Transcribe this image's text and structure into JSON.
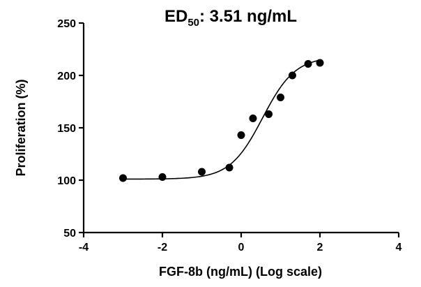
{
  "chart_data": {
    "type": "scatter",
    "title": {
      "main": "ED",
      "sub": "50",
      "rest": ": 3.51 ng/mL"
    },
    "xlabel": "FGF-8b (ng/mL) (Log scale)",
    "ylabel": "Proliferation (%)",
    "xlim": [
      -4,
      4
    ],
    "ylim": [
      50,
      250
    ],
    "xticks": [
      -4,
      -2,
      0,
      2,
      4
    ],
    "yticks": [
      50,
      100,
      150,
      200,
      250
    ],
    "xtick_labels": [
      "-4",
      "-2",
      "0",
      "2",
      "4"
    ],
    "ytick_labels": [
      "50",
      "100",
      "150",
      "200",
      "250"
    ],
    "grid": false,
    "legend": "none",
    "points": [
      {
        "x": -3.0,
        "y": 102
      },
      {
        "x": -2.0,
        "y": 103
      },
      {
        "x": -1.0,
        "y": 108
      },
      {
        "x": -0.3,
        "y": 112
      },
      {
        "x": 0.0,
        "y": 143
      },
      {
        "x": 0.3,
        "y": 159
      },
      {
        "x": 0.7,
        "y": 163
      },
      {
        "x": 1.0,
        "y": 179
      },
      {
        "x": 1.3,
        "y": 200
      },
      {
        "x": 1.7,
        "y": 211
      },
      {
        "x": 2.0,
        "y": 212
      }
    ],
    "fit": {
      "model": "sigmoidal dose-response",
      "bottom": 101,
      "top": 218,
      "log_ed50": 0.545,
      "hill_slope": 1.05,
      "x_range": [
        -3.0,
        2.0
      ]
    }
  }
}
